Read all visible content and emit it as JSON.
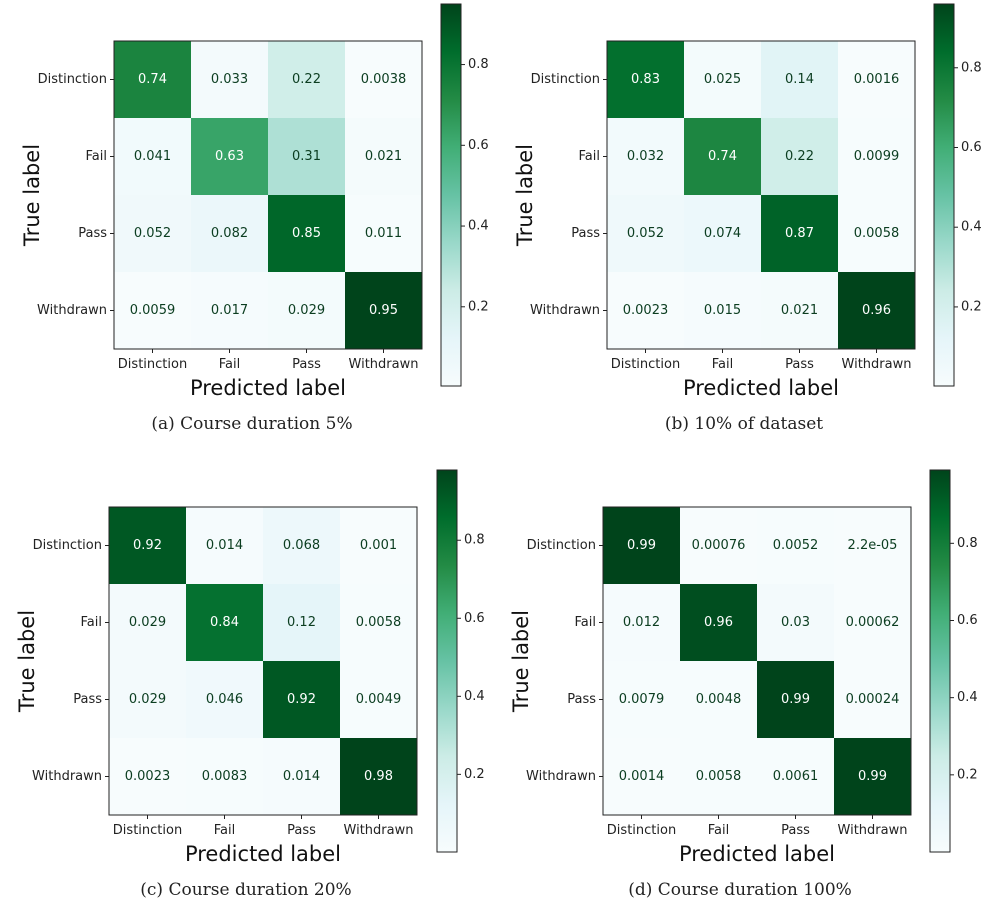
{
  "figure": {
    "captions": [
      "(a) Course duration 5%",
      "(b) 10% of dataset",
      "(c) Course duration 20%",
      "(d) Course duration 100%"
    ]
  },
  "chart_data": [
    {
      "type": "heatmap",
      "xlabel": "Predicted label",
      "ylabel": "True label",
      "categories_x": [
        "Distinction",
        "Fail",
        "Pass",
        "Withdrawn"
      ],
      "categories_y": [
        "Distinction",
        "Fail",
        "Pass",
        "Withdrawn"
      ],
      "values": [
        [
          0.74,
          0.033,
          0.22,
          0.0038
        ],
        [
          0.041,
          0.63,
          0.31,
          0.021
        ],
        [
          0.052,
          0.082,
          0.85,
          0.011
        ],
        [
          0.0059,
          0.017,
          0.029,
          0.95
        ]
      ],
      "labels": [
        [
          "0.74",
          "0.033",
          "0.22",
          "0.0038"
        ],
        [
          "0.041",
          "0.63",
          "0.31",
          "0.021"
        ],
        [
          "0.052",
          "0.082",
          "0.85",
          "0.011"
        ],
        [
          "0.0059",
          "0.017",
          "0.029",
          "0.95"
        ]
      ],
      "colorbar": {
        "ticks": [
          "0.2",
          "0.4",
          "0.6",
          "0.8"
        ],
        "range": [
          0.0038,
          0.95
        ]
      },
      "colormap": [
        "#f7fcfd",
        "#e5f5f9",
        "#ccece6",
        "#99d8c9",
        "#66c2a4",
        "#41ae76",
        "#238b45",
        "#006d2c",
        "#00441b"
      ]
    },
    {
      "type": "heatmap",
      "xlabel": "Predicted label",
      "ylabel": "True label",
      "categories_x": [
        "Distinction",
        "Fail",
        "Pass",
        "Withdrawn"
      ],
      "categories_y": [
        "Distinction",
        "Fail",
        "Pass",
        "Withdrawn"
      ],
      "values": [
        [
          0.83,
          0.025,
          0.14,
          0.0016
        ],
        [
          0.032,
          0.74,
          0.22,
          0.0099
        ],
        [
          0.052,
          0.074,
          0.87,
          0.0058
        ],
        [
          0.0023,
          0.015,
          0.021,
          0.96
        ]
      ],
      "labels": [
        [
          "0.83",
          "0.025",
          "0.14",
          "0.0016"
        ],
        [
          "0.032",
          "0.74",
          "0.22",
          "0.0099"
        ],
        [
          "0.052",
          "0.074",
          "0.87",
          "0.0058"
        ],
        [
          "0.0023",
          "0.015",
          "0.021",
          "0.96"
        ]
      ],
      "colorbar": {
        "ticks": [
          "0.2",
          "0.4",
          "0.6",
          "0.8"
        ],
        "range": [
          0.0016,
          0.96
        ]
      },
      "colormap": [
        "#f7fcfd",
        "#e5f5f9",
        "#ccece6",
        "#99d8c9",
        "#66c2a4",
        "#41ae76",
        "#238b45",
        "#006d2c",
        "#00441b"
      ]
    },
    {
      "type": "heatmap",
      "xlabel": "Predicted label",
      "ylabel": "True label",
      "categories_x": [
        "Distinction",
        "Fail",
        "Pass",
        "Withdrawn"
      ],
      "categories_y": [
        "Distinction",
        "Fail",
        "Pass",
        "Withdrawn"
      ],
      "values": [
        [
          0.92,
          0.014,
          0.068,
          0.001
        ],
        [
          0.029,
          0.84,
          0.12,
          0.0058
        ],
        [
          0.029,
          0.046,
          0.92,
          0.0049
        ],
        [
          0.0023,
          0.0083,
          0.014,
          0.98
        ]
      ],
      "labels": [
        [
          "0.92",
          "0.014",
          "0.068",
          "0.001"
        ],
        [
          "0.029",
          "0.84",
          "0.12",
          "0.0058"
        ],
        [
          "0.029",
          "0.046",
          "0.92",
          "0.0049"
        ],
        [
          "0.0023",
          "0.0083",
          "0.014",
          "0.98"
        ]
      ],
      "colorbar": {
        "ticks": [
          "0.2",
          "0.4",
          "0.6",
          "0.8"
        ],
        "range": [
          0.001,
          0.98
        ]
      },
      "colormap": [
        "#f7fcfd",
        "#e5f5f9",
        "#ccece6",
        "#99d8c9",
        "#66c2a4",
        "#41ae76",
        "#238b45",
        "#006d2c",
        "#00441b"
      ]
    },
    {
      "type": "heatmap",
      "xlabel": "Predicted label",
      "ylabel": "True label",
      "categories_x": [
        "Distinction",
        "Fail",
        "Pass",
        "Withdrawn"
      ],
      "categories_y": [
        "Distinction",
        "Fail",
        "Pass",
        "Withdrawn"
      ],
      "values": [
        [
          0.99,
          0.00076,
          0.0052,
          2.2e-05
        ],
        [
          0.012,
          0.96,
          0.03,
          0.00062
        ],
        [
          0.0079,
          0.0048,
          0.99,
          0.00024
        ],
        [
          0.0014,
          0.0058,
          0.0061,
          0.99
        ]
      ],
      "labels": [
        [
          "0.99",
          "0.00076",
          "0.0052",
          "2.2e-05"
        ],
        [
          "0.012",
          "0.96",
          "0.03",
          "0.00062"
        ],
        [
          "0.0079",
          "0.0048",
          "0.99",
          "0.00024"
        ],
        [
          "0.0014",
          "0.0058",
          "0.0061",
          "0.99"
        ]
      ],
      "colorbar": {
        "ticks": [
          "0.2",
          "0.4",
          "0.6",
          "0.8"
        ],
        "range": [
          2.2e-05,
          0.99
        ]
      },
      "colormap": [
        "#f7fcfd",
        "#e5f5f9",
        "#ccece6",
        "#99d8c9",
        "#66c2a4",
        "#41ae76",
        "#238b45",
        "#006d2c",
        "#00441b"
      ]
    }
  ]
}
